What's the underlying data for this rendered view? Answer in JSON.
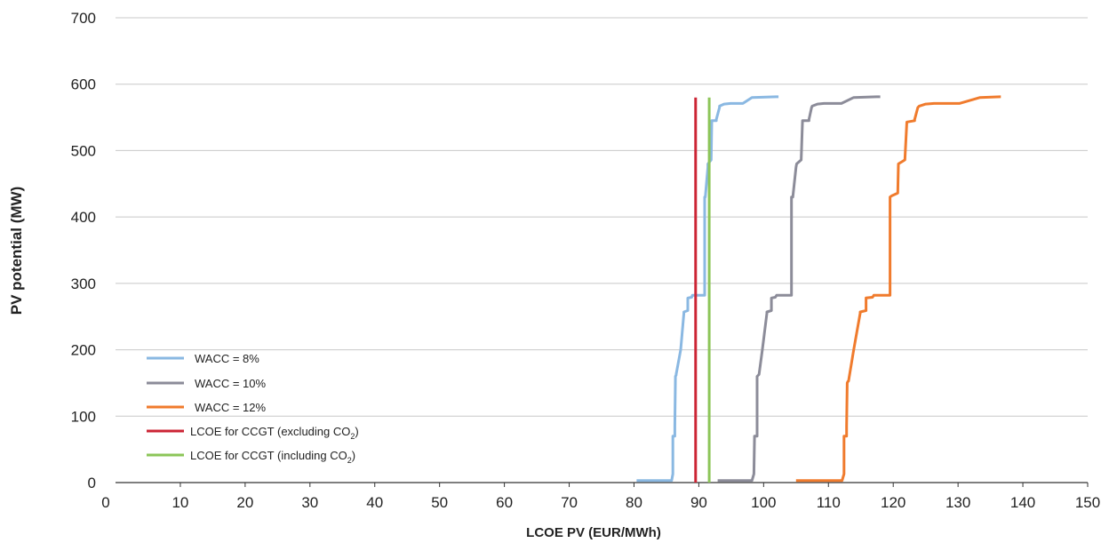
{
  "chart_data": {
    "type": "line",
    "title": "",
    "xlabel": "LCOE PV (EUR/MWh)",
    "ylabel": "PV potential (MW)",
    "xlim": [
      0,
      150
    ],
    "ylim": [
      0,
      700
    ],
    "x_ticks": [
      "0",
      "10",
      "20",
      "30",
      "40",
      "50",
      "60",
      "70",
      "80",
      "90",
      "100",
      "110",
      "120",
      "130",
      "140",
      "150"
    ],
    "y_ticks": [
      "0",
      "100",
      "200",
      "300",
      "400",
      "500",
      "600",
      "700"
    ],
    "grid": "horizontal",
    "legend_position": "bottom-left",
    "series": [
      {
        "name": "WACC = 8%",
        "color": "#8ab8e2",
        "x": [
          80.4,
          85.8,
          86.0,
          86.0,
          86.3,
          86.3,
          86.4,
          86.5,
          86.5,
          87.2,
          87.7,
          87.7,
          88.3,
          88.3,
          88.9,
          89.0,
          90.9,
          90.9,
          91.0,
          91.4,
          91.4,
          91.9,
          92.0,
          92.7,
          92.7,
          93.2,
          93.2,
          93.9,
          94.9,
          95.6,
          96.8,
          98.2,
          101.9,
          102.3
        ],
        "y": [
          3,
          3,
          13,
          70,
          70,
          85,
          160,
          162,
          163,
          200,
          255,
          257,
          259,
          278,
          279,
          282,
          282,
          430,
          430,
          475,
          480,
          486,
          545,
          545,
          547,
          565,
          567,
          570,
          571,
          571,
          571,
          580,
          581,
          581
        ]
      },
      {
        "name": "WACC = 10%",
        "color": "#8c8c99",
        "x": [
          92.9,
          98.2,
          98.5,
          98.6,
          99.0,
          99.0,
          99.0,
          99.2,
          99.3,
          99.8,
          100.5,
          100.5,
          101.2,
          101.2,
          101.8,
          102.0,
          104.3,
          104.3,
          104.5,
          105.0,
          105.1,
          105.8,
          106.0,
          107.0,
          107.0,
          107.4,
          107.5,
          108.3,
          109.3,
          110.5,
          112.0,
          113.9,
          117.4,
          118.0
        ],
        "y": [
          3,
          3,
          13,
          70,
          70,
          85,
          160,
          162,
          163,
          200,
          255,
          257,
          259,
          278,
          279,
          282,
          282,
          430,
          430,
          475,
          480,
          486,
          545,
          545,
          547,
          565,
          567,
          570,
          571,
          571,
          571,
          580,
          581,
          581
        ]
      },
      {
        "name": "WACC = 12%",
        "color": "#f07b2d",
        "x": [
          105.0,
          112.1,
          112.4,
          112.4,
          112.8,
          112.8,
          112.9,
          113.0,
          113.1,
          113.9,
          114.9,
          114.9,
          115.8,
          115.8,
          116.8,
          117.0,
          119.5,
          119.5,
          119.8,
          120.7,
          120.8,
          121.8,
          122.1,
          123.3,
          123.3,
          123.8,
          124.0,
          125.0,
          126.3,
          128.0,
          130.2,
          133.4,
          136.5,
          136.6
        ],
        "y": [
          3,
          3,
          13,
          70,
          70,
          85,
          150,
          152,
          153,
          200,
          255,
          257,
          259,
          278,
          279,
          282,
          282,
          430,
          432,
          436,
          480,
          486,
          543,
          545,
          547,
          565,
          567,
          570,
          571,
          571,
          571,
          580,
          581,
          581
        ]
      },
      {
        "name": "LCOE for CCGT (excluding CO",
        "name_sub": "2",
        "name_suffix": ")",
        "color": "#cc2535",
        "x": [
          89.5,
          89.5
        ],
        "y": [
          0,
          580
        ]
      },
      {
        "name": "LCOE for CCGT (including CO",
        "name_sub": "2",
        "name_suffix": ")",
        "color": "#8cc558",
        "x": [
          91.6,
          91.6
        ],
        "y": [
          0,
          580
        ]
      }
    ]
  }
}
